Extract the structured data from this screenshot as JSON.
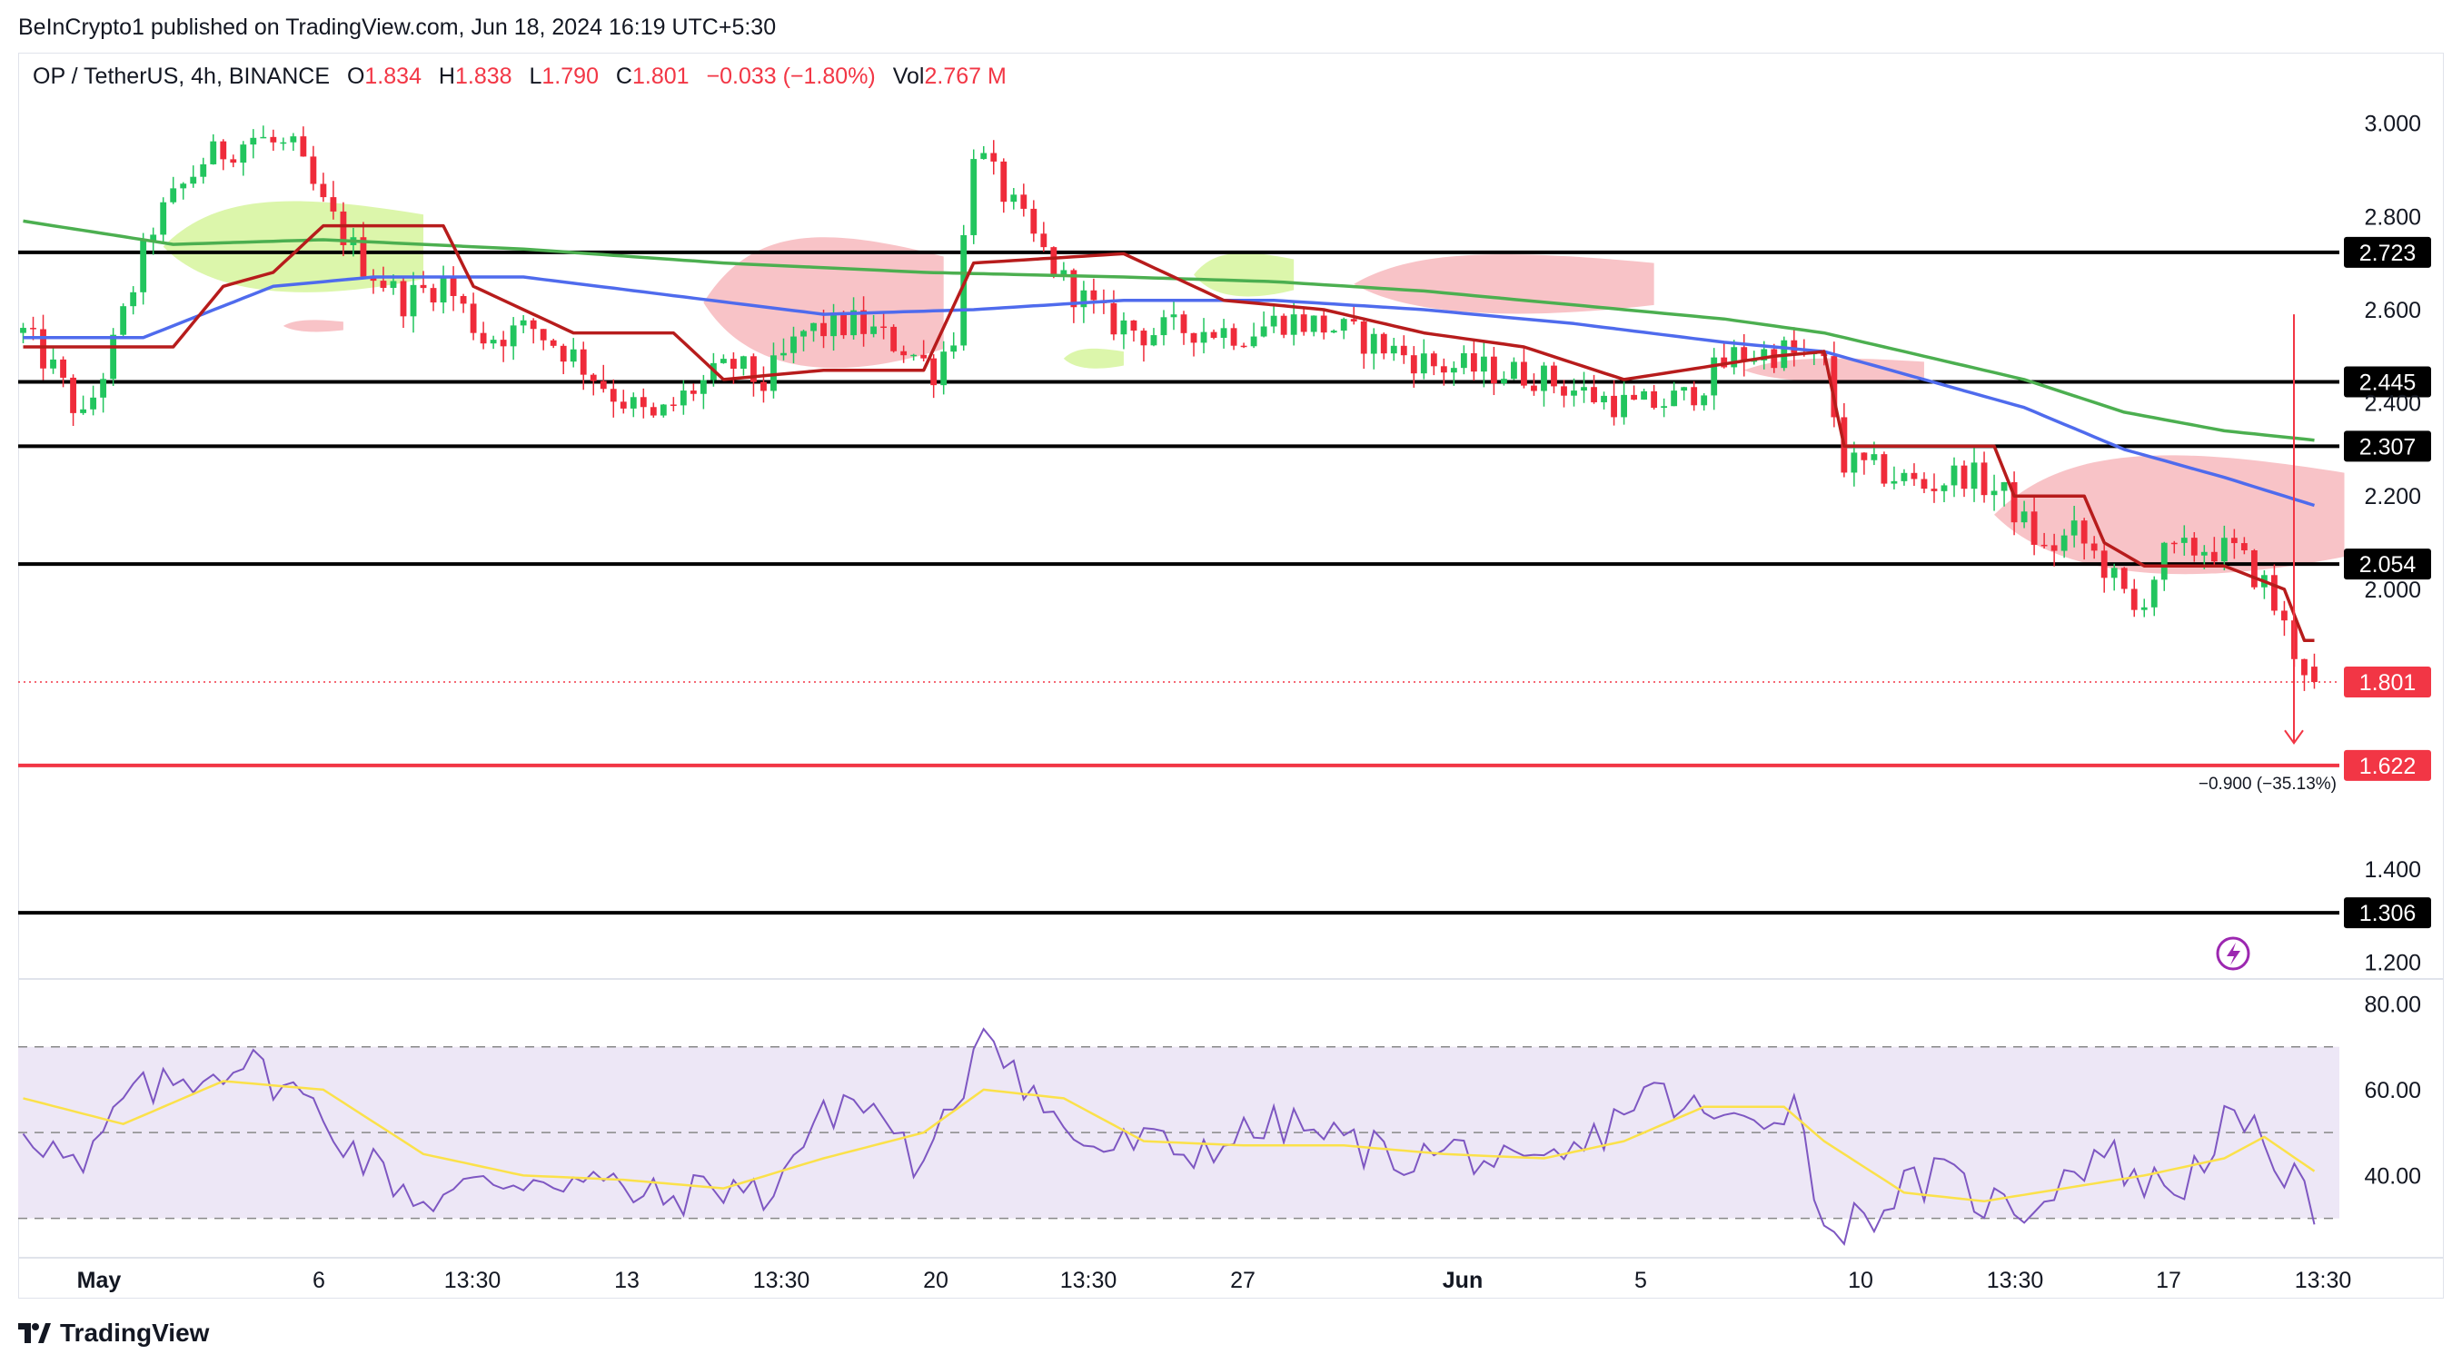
{
  "header": {
    "publisher": "BeInCrypto1 published on TradingView.com, Jun 18, 2024 16:19 UTC+5:30"
  },
  "legend": {
    "symbol": "OP / TetherUS, 4h, BINANCE",
    "open_label": "O",
    "open": "1.834",
    "high_label": "H",
    "high": "1.838",
    "low_label": "L",
    "low": "1.790",
    "close_label": "C",
    "close": "1.801",
    "change": "−0.033 (−1.80%)",
    "vol_label": "Vol",
    "vol": "2.767 M"
  },
  "footer": {
    "brand": "TradingView"
  },
  "colors": {
    "up": "#22c55e",
    "down": "#ef2b3a",
    "baseline": "#4f6bed",
    "lagging": "#4caf50",
    "conversion": "#b71c1c",
    "cloud_bull": "#d6f59c",
    "cloud_bear": "#f7b9bd",
    "rsi": "#7e57c2",
    "rsi_ma": "#fbe14a",
    "rsi_band": "#ede7f6",
    "target": "#f23645"
  },
  "chart_data": [
    {
      "type": "candlestick",
      "title": "OP / TetherUS, 4h, BINANCE",
      "y_axis_ticks": [
        "3.000",
        "2.800",
        "2.600",
        "2.400",
        "2.200",
        "2.000",
        "1.400",
        "1.200"
      ],
      "ylim": [
        1.16,
        3.05
      ],
      "x_axis_ticks": [
        "May",
        "6",
        "13:30",
        "13",
        "13:30",
        "20",
        "13:30",
        "27",
        "Jun",
        "5",
        "10",
        "13:30",
        "17",
        "13:30"
      ],
      "horizontal_levels": [
        {
          "label": "2.723",
          "value": 2.723,
          "color": "#000000"
        },
        {
          "label": "2.445",
          "value": 2.445,
          "color": "#000000"
        },
        {
          "label": "2.307",
          "value": 2.307,
          "color": "#000000"
        },
        {
          "label": "2.054",
          "value": 2.054,
          "color": "#000000"
        },
        {
          "label": "1.622",
          "value": 1.622,
          "color": "#f23645"
        },
        {
          "label": "1.306",
          "value": 1.306,
          "color": "#000000"
        }
      ],
      "last_price": {
        "label": "1.801",
        "value": 1.801
      },
      "projection": {
        "from": 2.59,
        "to": 1.67,
        "label": "−0.900 (−35.13%)"
      },
      "close_path": [
        [
          0,
          2.55
        ],
        [
          3,
          2.47
        ],
        [
          6,
          2.36
        ],
        [
          9,
          2.52
        ],
        [
          13,
          2.78
        ],
        [
          18,
          2.92
        ],
        [
          23,
          2.97
        ],
        [
          27,
          2.94
        ],
        [
          30,
          2.82
        ],
        [
          34,
          2.7
        ],
        [
          38,
          2.62
        ],
        [
          42,
          2.66
        ],
        [
          46,
          2.54
        ],
        [
          51,
          2.56
        ],
        [
          55,
          2.5
        ],
        [
          59,
          2.42
        ],
        [
          63,
          2.36
        ],
        [
          67,
          2.43
        ],
        [
          71,
          2.48
        ],
        [
          74,
          2.44
        ],
        [
          78,
          2.55
        ],
        [
          83,
          2.57
        ],
        [
          88,
          2.52
        ],
        [
          91,
          2.47
        ],
        [
          93,
          2.55
        ],
        [
          95,
          2.95
        ],
        [
          98,
          2.85
        ],
        [
          101,
          2.75
        ],
        [
          104,
          2.66
        ],
        [
          108,
          2.58
        ],
        [
          112,
          2.55
        ],
        [
          117,
          2.56
        ],
        [
          122,
          2.55
        ],
        [
          126,
          2.58
        ],
        [
          131,
          2.56
        ],
        [
          136,
          2.52
        ],
        [
          141,
          2.48
        ],
        [
          146,
          2.47
        ],
        [
          151,
          2.46
        ],
        [
          156,
          2.42
        ],
        [
          161,
          2.39
        ],
        [
          166,
          2.41
        ],
        [
          171,
          2.5
        ],
        [
          176,
          2.51
        ],
        [
          180,
          2.48
        ],
        [
          182,
          2.27
        ],
        [
          186,
          2.25
        ],
        [
          190,
          2.22
        ],
        [
          194,
          2.25
        ],
        [
          198,
          2.2
        ],
        [
          202,
          2.08
        ],
        [
          205,
          2.12
        ],
        [
          208,
          2.05
        ],
        [
          211,
          1.95
        ],
        [
          214,
          2.07
        ],
        [
          218,
          2.09
        ],
        [
          221,
          2.08
        ],
        [
          224,
          2.01
        ],
        [
          227,
          1.87
        ],
        [
          229,
          1.8
        ]
      ],
      "kijun_path": [
        [
          0,
          2.52
        ],
        [
          15,
          2.52
        ],
        [
          20,
          2.65
        ],
        [
          25,
          2.68
        ],
        [
          30,
          2.78
        ],
        [
          42,
          2.78
        ],
        [
          45,
          2.65
        ],
        [
          55,
          2.55
        ],
        [
          65,
          2.55
        ],
        [
          70,
          2.45
        ],
        [
          80,
          2.47
        ],
        [
          90,
          2.47
        ],
        [
          95,
          2.7
        ],
        [
          110,
          2.72
        ],
        [
          120,
          2.62
        ],
        [
          130,
          2.6
        ],
        [
          140,
          2.55
        ],
        [
          150,
          2.52
        ],
        [
          160,
          2.45
        ],
        [
          175,
          2.5
        ],
        [
          180,
          2.51
        ],
        [
          182,
          2.307
        ],
        [
          197,
          2.307
        ],
        [
          199,
          2.2
        ],
        [
          206,
          2.2
        ],
        [
          208,
          2.1
        ],
        [
          212,
          2.05
        ],
        [
          220,
          2.05
        ],
        [
          226,
          2.0
        ],
        [
          228,
          1.89
        ],
        [
          229,
          1.89
        ]
      ],
      "baseline_ma_path": [
        [
          0,
          2.54
        ],
        [
          12,
          2.54
        ],
        [
          25,
          2.65
        ],
        [
          35,
          2.67
        ],
        [
          50,
          2.67
        ],
        [
          65,
          2.63
        ],
        [
          80,
          2.59
        ],
        [
          95,
          2.6
        ],
        [
          110,
          2.62
        ],
        [
          125,
          2.62
        ],
        [
          140,
          2.6
        ],
        [
          155,
          2.57
        ],
        [
          170,
          2.53
        ],
        [
          180,
          2.51
        ],
        [
          190,
          2.45
        ],
        [
          200,
          2.39
        ],
        [
          210,
          2.3
        ],
        [
          220,
          2.24
        ],
        [
          229,
          2.18
        ]
      ],
      "lagging_ma_path": [
        [
          0,
          2.79
        ],
        [
          15,
          2.74
        ],
        [
          30,
          2.75
        ],
        [
          50,
          2.73
        ],
        [
          70,
          2.7
        ],
        [
          90,
          2.68
        ],
        [
          110,
          2.67
        ],
        [
          125,
          2.66
        ],
        [
          140,
          2.64
        ],
        [
          155,
          2.61
        ],
        [
          170,
          2.58
        ],
        [
          180,
          2.55
        ],
        [
          190,
          2.5
        ],
        [
          200,
          2.45
        ],
        [
          210,
          2.38
        ],
        [
          220,
          2.34
        ],
        [
          229,
          2.32
        ]
      ],
      "cloud_bands": [
        {
          "from": 14,
          "to": 40,
          "top": 2.85,
          "bottom": 2.62,
          "kind": "bull"
        },
        {
          "from": 26,
          "to": 32,
          "top": 2.58,
          "bottom": 2.55,
          "kind": "bear"
        },
        {
          "from": 68,
          "to": 92,
          "top": 2.78,
          "bottom": 2.45,
          "kind": "bear"
        },
        {
          "from": 104,
          "to": 110,
          "top": 2.52,
          "bottom": 2.47,
          "kind": "bull"
        },
        {
          "from": 117,
          "to": 127,
          "top": 2.73,
          "bottom": 2.62,
          "kind": "bull"
        },
        {
          "from": 133,
          "to": 163,
          "top": 2.73,
          "bottom": 2.58,
          "kind": "bear"
        },
        {
          "from": 172,
          "to": 190,
          "top": 2.5,
          "bottom": 2.44,
          "kind": "bear"
        },
        {
          "from": 197,
          "to": 232,
          "top": 2.31,
          "bottom": 2.01,
          "kind": "bear"
        }
      ]
    },
    {
      "type": "line",
      "title": "RSI",
      "y_axis_ticks": [
        "80.00",
        "60.00",
        "40.00"
      ],
      "ylim": [
        24,
        82
      ],
      "bands": {
        "upper": 70,
        "middle": 50,
        "lower": 30
      },
      "series": [
        {
          "values_path": [
            [
              0,
              52
            ],
            [
              6,
              40
            ],
            [
              10,
              58
            ],
            [
              16,
              62
            ],
            [
              22,
              67
            ],
            [
              28,
              58
            ],
            [
              34,
              44
            ],
            [
              40,
              34
            ],
            [
              46,
              38
            ],
            [
              52,
              40
            ],
            [
              58,
              38
            ],
            [
              64,
              34
            ],
            [
              70,
              38
            ],
            [
              74,
              35
            ],
            [
              78,
              48
            ],
            [
              82,
              58
            ],
            [
              86,
              54
            ],
            [
              90,
              40
            ],
            [
              94,
              62
            ],
            [
              96,
              77
            ],
            [
              100,
              62
            ],
            [
              104,
              50
            ],
            [
              108,
              46
            ],
            [
              112,
              48
            ],
            [
              116,
              45
            ],
            [
              120,
              48
            ],
            [
              126,
              52
            ],
            [
              132,
              48
            ],
            [
              138,
              44
            ],
            [
              144,
              46
            ],
            [
              150,
              40
            ],
            [
              156,
              46
            ],
            [
              162,
              60
            ],
            [
              166,
              56
            ],
            [
              170,
              52
            ],
            [
              174,
              54
            ],
            [
              177,
              58
            ],
            [
              180,
              28
            ],
            [
              184,
              30
            ],
            [
              188,
              37
            ],
            [
              192,
              40
            ],
            [
              196,
              34
            ],
            [
              200,
              32
            ],
            [
              204,
              40
            ],
            [
              208,
              46
            ],
            [
              212,
              38
            ],
            [
              216,
              38
            ],
            [
              220,
              52
            ],
            [
              224,
              48
            ],
            [
              227,
              38
            ],
            [
              229,
              30
            ]
          ]
        },
        {
          "values_path": [
            [
              0,
              58
            ],
            [
              10,
              52
            ],
            [
              20,
              62
            ],
            [
              30,
              60
            ],
            [
              40,
              45
            ],
            [
              50,
              40
            ],
            [
              60,
              39
            ],
            [
              70,
              37
            ],
            [
              80,
              44
            ],
            [
              90,
              50
            ],
            [
              96,
              60
            ],
            [
              104,
              58
            ],
            [
              112,
              48
            ],
            [
              122,
              47
            ],
            [
              132,
              47
            ],
            [
              142,
              45
            ],
            [
              152,
              44
            ],
            [
              160,
              48
            ],
            [
              168,
              56
            ],
            [
              176,
              56
            ],
            [
              180,
              48
            ],
            [
              188,
              36
            ],
            [
              196,
              34
            ],
            [
              204,
              37
            ],
            [
              212,
              40
            ],
            [
              220,
              44
            ],
            [
              224,
              49
            ],
            [
              229,
              41
            ]
          ]
        }
      ]
    }
  ]
}
